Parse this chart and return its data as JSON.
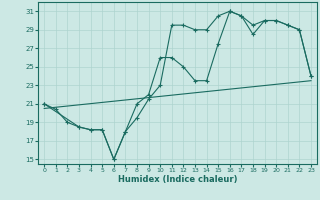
{
  "xlabel": "Humidex (Indice chaleur)",
  "ylabel": "",
  "xlim": [
    -0.5,
    23.5
  ],
  "ylim": [
    14.5,
    32
  ],
  "xticks": [
    0,
    1,
    2,
    3,
    4,
    5,
    6,
    7,
    8,
    9,
    10,
    11,
    12,
    13,
    14,
    15,
    16,
    17,
    18,
    19,
    20,
    21,
    22,
    23
  ],
  "yticks": [
    15,
    17,
    19,
    21,
    23,
    25,
    27,
    29,
    31
  ],
  "bg_color": "#cce8e4",
  "line_color": "#1a6b60",
  "grid_color": "#aed4cf",
  "series1_x": [
    0,
    1,
    2,
    3,
    4,
    5,
    6,
    7,
    8,
    9,
    10,
    11,
    12,
    13,
    14,
    15,
    16,
    17,
    18,
    19,
    20,
    21,
    22,
    23
  ],
  "series1_y": [
    21.0,
    20.4,
    19.0,
    18.5,
    18.2,
    18.2,
    15.0,
    18.0,
    19.5,
    21.5,
    23.0,
    29.5,
    29.5,
    29.0,
    29.0,
    30.5,
    31.0,
    30.5,
    29.5,
    30.0,
    30.0,
    29.5,
    29.0,
    24.0
  ],
  "series2_x": [
    0,
    3,
    4,
    5,
    6,
    7,
    8,
    9,
    10,
    11,
    12,
    13,
    14,
    15,
    16,
    17,
    18,
    19,
    20,
    21,
    22,
    23
  ],
  "series2_y": [
    21.0,
    18.5,
    18.2,
    18.2,
    15.0,
    18.0,
    21.0,
    22.0,
    26.0,
    26.0,
    25.0,
    23.5,
    23.5,
    27.5,
    31.0,
    30.5,
    28.5,
    30.0,
    30.0,
    29.5,
    29.0,
    24.0
  ],
  "series3_x": [
    0,
    23
  ],
  "series3_y": [
    20.5,
    23.5
  ]
}
